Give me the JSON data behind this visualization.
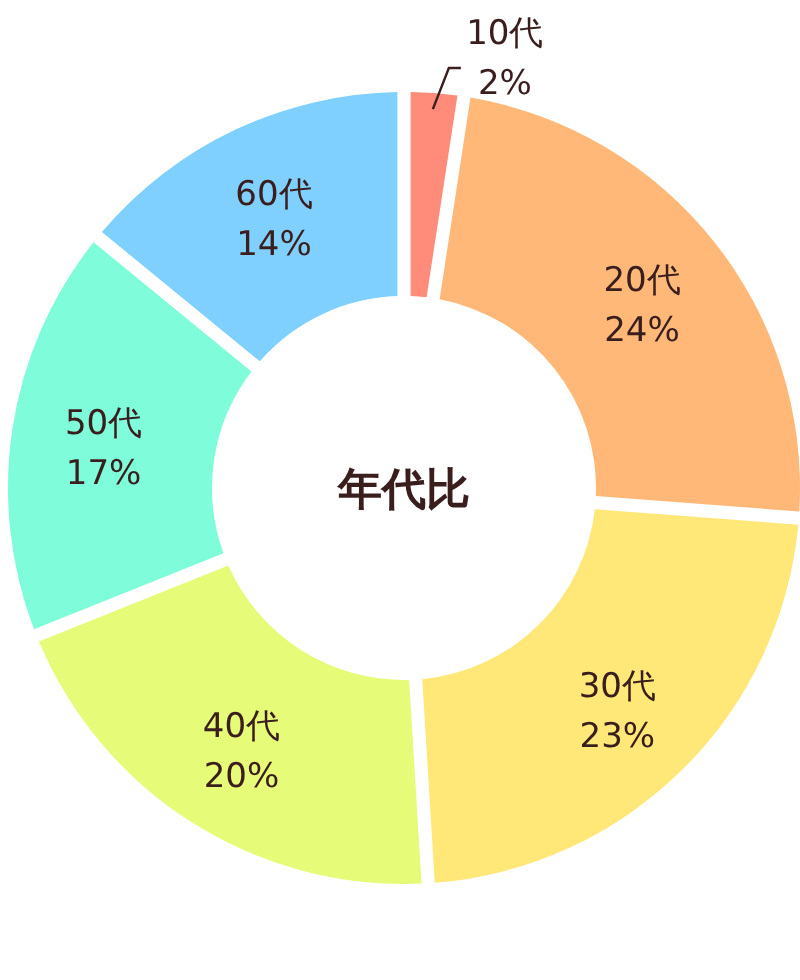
{
  "chart_data": {
    "type": "donut",
    "title": "年代比",
    "categories": [
      "10代",
      "20代",
      "30代",
      "40代",
      "50代",
      "60代"
    ],
    "values": [
      2,
      24,
      23,
      20,
      17,
      14
    ],
    "value_labels": [
      "2%",
      "24%",
      "23%",
      "20%",
      "17%",
      "14%"
    ],
    "colors": [
      "#ff8c7a",
      "#ffb878",
      "#ffe878",
      "#e6fb78",
      "#7ffcd9",
      "#80d0ff"
    ]
  }
}
